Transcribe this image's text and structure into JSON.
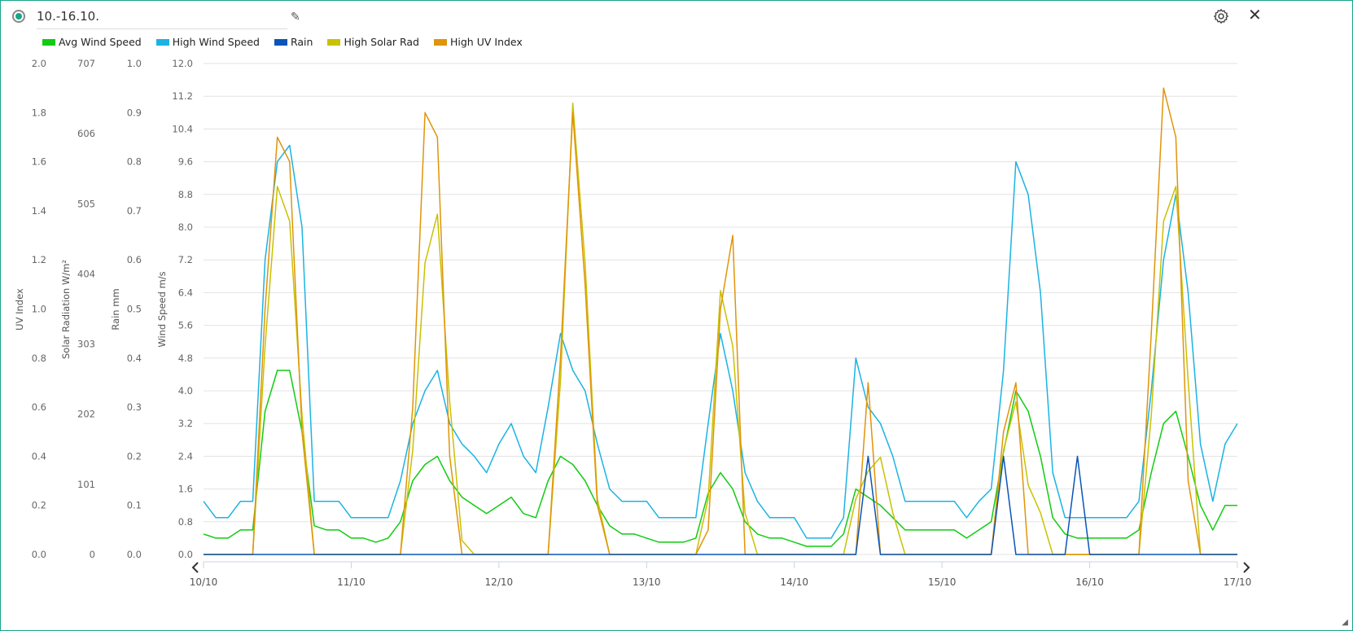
{
  "header": {
    "title": "10.-16.10.",
    "edit_icon": "pencil-icon",
    "settings_icon": "gear-icon",
    "close_icon": "close-icon"
  },
  "colors": {
    "frame": "#17a689",
    "avg_wind": "#11cc11",
    "high_wind": "#1bb3e3",
    "rain": "#0a55b8",
    "solar": "#c8c200",
    "uv": "#e0940a"
  },
  "legend": [
    {
      "label": "Avg Wind Speed",
      "color": "#11cc11"
    },
    {
      "label": "High Wind Speed",
      "color": "#1bb3e3"
    },
    {
      "label": "Rain",
      "color": "#0a55b8"
    },
    {
      "label": "High Solar Rad",
      "color": "#c8c200"
    },
    {
      "label": "High UV Index",
      "color": "#e0940a"
    }
  ],
  "chart_data": {
    "type": "line",
    "grid": true,
    "legend_position": "top-left",
    "x_tick_labels": [
      "10/10",
      "11/10",
      "12/10",
      "13/10",
      "14/10",
      "15/10",
      "16/10",
      "17/10"
    ],
    "x_hours_step": 2,
    "axes": [
      {
        "label": "UV Index",
        "ylim": [
          0,
          2.0
        ],
        "ticks": [
          "2.0",
          "1.8",
          "1.6",
          "1.4",
          "1.2",
          "1.0",
          "0.8",
          "0.6",
          "0.4",
          "0.2",
          "0.0"
        ]
      },
      {
        "label": "Solar Radiation W/m²",
        "ylim": [
          0,
          707
        ],
        "ticks": [
          "707",
          "606",
          "505",
          "404",
          "303",
          "202",
          "101",
          "0"
        ]
      },
      {
        "label": "Rain mm",
        "ylim": [
          0,
          1.0
        ],
        "ticks": [
          "1.0",
          "0.9",
          "0.8",
          "0.7",
          "0.6",
          "0.5",
          "0.4",
          "0.3",
          "0.2",
          "0.1",
          "0.0"
        ]
      },
      {
        "label": "Wind Speed m/s",
        "ylim": [
          0,
          12.0
        ],
        "ticks": [
          "12.0",
          "11.2",
          "10.4",
          "9.6",
          "8.8",
          "8.0",
          "7.2",
          "6.4",
          "5.6",
          "4.8",
          "4.0",
          "3.2",
          "2.4",
          "1.6",
          "0.8",
          "0.0"
        ]
      }
    ],
    "series": [
      {
        "name": "High Wind Speed",
        "axis": 3,
        "color": "#1bb3e3",
        "values": [
          1.3,
          0.9,
          0.9,
          1.3,
          1.3,
          7.2,
          9.6,
          10.0,
          8.0,
          1.3,
          1.3,
          1.3,
          0.9,
          0.9,
          0.9,
          0.9,
          1.8,
          3.2,
          4.0,
          4.5,
          3.2,
          2.7,
          2.4,
          2.0,
          2.7,
          3.2,
          2.4,
          2.0,
          3.6,
          5.4,
          4.5,
          4.0,
          2.7,
          1.6,
          1.3,
          1.3,
          1.3,
          0.9,
          0.9,
          0.9,
          0.9,
          3.2,
          5.4,
          4.0,
          2.0,
          1.3,
          0.9,
          0.9,
          0.9,
          0.4,
          0.4,
          0.4,
          0.9,
          4.8,
          3.6,
          3.2,
          2.4,
          1.3,
          1.3,
          1.3,
          1.3,
          1.3,
          0.9,
          1.3,
          1.6,
          4.5,
          9.6,
          8.8,
          6.4,
          2.0,
          0.9,
          0.9,
          0.9,
          0.9,
          0.9,
          0.9,
          1.3,
          4.0,
          7.2,
          8.8,
          6.4,
          2.7,
          1.3,
          2.7,
          3.2
        ]
      },
      {
        "name": "Avg Wind Speed",
        "axis": 3,
        "color": "#11cc11",
        "values": [
          0.5,
          0.4,
          0.4,
          0.6,
          0.6,
          3.5,
          4.5,
          4.5,
          3.0,
          0.7,
          0.6,
          0.6,
          0.4,
          0.4,
          0.3,
          0.4,
          0.8,
          1.8,
          2.2,
          2.4,
          1.8,
          1.4,
          1.2,
          1.0,
          1.2,
          1.4,
          1.0,
          0.9,
          1.8,
          2.4,
          2.2,
          1.8,
          1.2,
          0.7,
          0.5,
          0.5,
          0.4,
          0.3,
          0.3,
          0.3,
          0.4,
          1.5,
          2.0,
          1.6,
          0.8,
          0.5,
          0.4,
          0.4,
          0.3,
          0.2,
          0.2,
          0.2,
          0.5,
          1.6,
          1.4,
          1.2,
          0.9,
          0.6,
          0.6,
          0.6,
          0.6,
          0.6,
          0.4,
          0.6,
          0.8,
          2.5,
          4.0,
          3.5,
          2.4,
          0.9,
          0.5,
          0.4,
          0.4,
          0.4,
          0.4,
          0.4,
          0.6,
          2.0,
          3.2,
          3.5,
          2.4,
          1.2,
          0.6,
          1.2,
          1.2
        ]
      },
      {
        "name": "High Solar Rad",
        "axis": 1,
        "color": "#c8c200",
        "values": [
          0,
          0,
          0,
          0,
          0,
          300,
          530,
          480,
          200,
          0,
          0,
          0,
          0,
          0,
          0,
          0,
          0,
          150,
          420,
          490,
          220,
          20,
          0,
          0,
          0,
          0,
          0,
          0,
          0,
          250,
          650,
          420,
          80,
          0,
          0,
          0,
          0,
          0,
          0,
          0,
          0,
          80,
          380,
          300,
          60,
          0,
          0,
          0,
          0,
          0,
          0,
          0,
          0,
          80,
          120,
          140,
          60,
          0,
          0,
          0,
          0,
          0,
          0,
          0,
          0,
          150,
          220,
          100,
          60,
          0,
          0,
          0,
          0,
          0,
          0,
          0,
          0,
          200,
          480,
          530,
          250,
          0,
          0,
          0,
          0
        ]
      },
      {
        "name": "High UV Index",
        "axis": 0,
        "color": "#e0940a",
        "values": [
          0,
          0,
          0,
          0,
          0,
          1.0,
          1.7,
          1.6,
          0.5,
          0,
          0,
          0,
          0,
          0,
          0,
          0,
          0,
          0.6,
          1.8,
          1.7,
          0.4,
          0,
          0,
          0,
          0,
          0,
          0,
          0,
          0,
          0.8,
          1.8,
          1.1,
          0.2,
          0,
          0,
          0,
          0,
          0,
          0,
          0,
          0,
          0.1,
          1.0,
          1.3,
          0,
          0,
          0,
          0,
          0,
          0,
          0,
          0,
          0,
          0,
          0.7,
          0,
          0,
          0,
          0,
          0,
          0,
          0,
          0,
          0,
          0,
          0.5,
          0.7,
          0,
          0,
          0,
          0,
          0,
          0,
          0,
          0,
          0,
          0,
          0.9,
          1.9,
          1.7,
          0.3,
          0,
          0,
          0,
          0
        ]
      },
      {
        "name": "Rain",
        "axis": 2,
        "color": "#0a55b8",
        "values": [
          0,
          0,
          0,
          0,
          0,
          0,
          0,
          0,
          0,
          0,
          0,
          0,
          0,
          0,
          0,
          0,
          0,
          0,
          0,
          0,
          0,
          0,
          0,
          0,
          0,
          0,
          0,
          0,
          0,
          0,
          0,
          0,
          0,
          0,
          0,
          0,
          0,
          0,
          0,
          0,
          0,
          0,
          0,
          0,
          0,
          0,
          0,
          0,
          0,
          0,
          0,
          0,
          0,
          0,
          0.2,
          0,
          0,
          0,
          0,
          0,
          0,
          0,
          0,
          0,
          0,
          0.2,
          0,
          0,
          0,
          0,
          0,
          0.2,
          0,
          0,
          0,
          0,
          0,
          0,
          0,
          0,
          0,
          0,
          0,
          0,
          0
        ]
      }
    ]
  }
}
